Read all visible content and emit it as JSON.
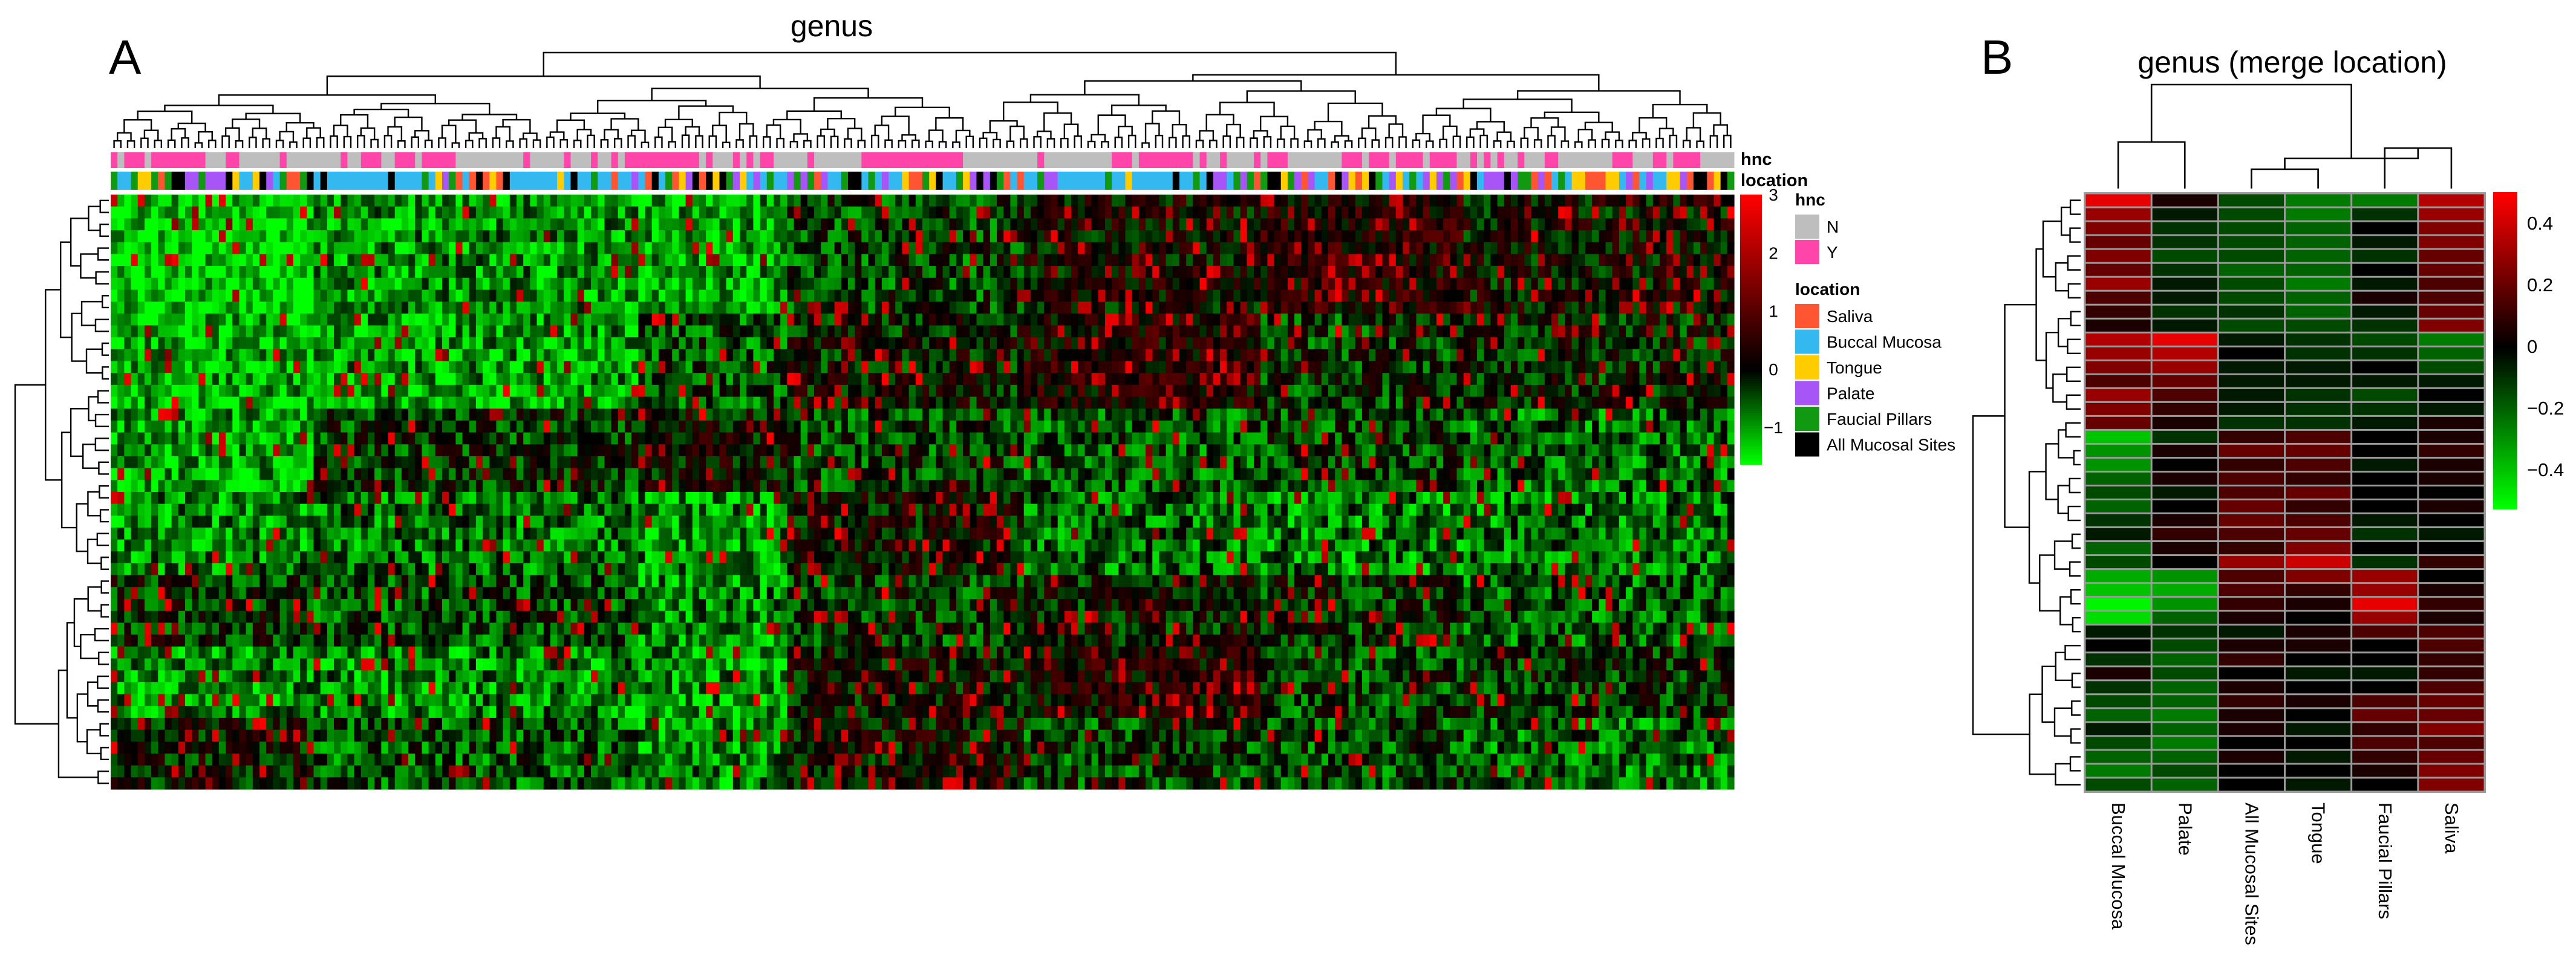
{
  "panel_a": {
    "letter": "A",
    "title": "genus",
    "annotation_labels": [
      "hnc",
      "location"
    ],
    "colorbar": {
      "min": -1.6,
      "max": 3,
      "ticks": [
        3,
        2,
        1,
        0,
        -1
      ],
      "tick_labels": [
        "3",
        "2",
        "1",
        "0",
        "−1"
      ]
    },
    "legend": {
      "hnc_title": "hnc",
      "hnc_items": [
        {
          "label": "N",
          "color": "#bebebe"
        },
        {
          "label": "Y",
          "color": "#ff44aa"
        }
      ],
      "location_title": "location",
      "location_items": [
        {
          "label": "Saliva",
          "color": "#ff5533"
        },
        {
          "label": "Buccal Mucosa",
          "color": "#33b8f0"
        },
        {
          "label": "Tongue",
          "color": "#ffcc00"
        },
        {
          "label": "Palate",
          "color": "#a855f7"
        },
        {
          "label": "Faucial Pillars",
          "color": "#119911"
        },
        {
          "label": "All Mucosal Sites",
          "color": "#000000"
        }
      ]
    }
  },
  "panel_b": {
    "letter": "B",
    "title": "genus (merge location)",
    "colorbar": {
      "min": -0.52,
      "max": 0.5,
      "ticks": [
        0.4,
        0.2,
        0,
        -0.2,
        -0.4
      ],
      "tick_labels": [
        "0.4",
        "0.2",
        "0",
        "−0.2",
        "−0.4"
      ]
    }
  },
  "chart_data": [
    {
      "type": "heatmap",
      "title": "genus",
      "rows": 50,
      "columns": 240,
      "color_scale": [
        "#00ff00",
        "#000000",
        "#ff0000"
      ],
      "value_range": [
        -1.6,
        3
      ],
      "column_annotations": [
        "hnc",
        "location"
      ],
      "note_values": "individual cell values are not printed; pattern reproduced approximately"
    },
    {
      "type": "heatmap",
      "title": "genus (merge location)",
      "columns": [
        "Buccal Mucosa",
        "Palate",
        "All Mucosal Sites",
        "Tongue",
        "Faucial Pillars",
        "Saliva"
      ],
      "rows": 43,
      "color_scale": [
        "#00ff00",
        "#000000",
        "#ff0000"
      ],
      "value_range": [
        -0.52,
        0.5
      ],
      "values": [
        [
          0.45,
          0.05,
          -0.15,
          -0.25,
          -0.25,
          0.35
        ],
        [
          0.3,
          -0.05,
          -0.15,
          -0.25,
          -0.1,
          0.3
        ],
        [
          0.25,
          -0.1,
          -0.15,
          -0.2,
          0.0,
          0.25
        ],
        [
          0.2,
          -0.1,
          -0.15,
          -0.2,
          -0.05,
          0.25
        ],
        [
          0.25,
          -0.15,
          -0.15,
          -0.2,
          -0.1,
          0.2
        ],
        [
          0.2,
          -0.1,
          -0.2,
          -0.2,
          0.0,
          0.2
        ],
        [
          0.3,
          -0.05,
          -0.15,
          -0.25,
          -0.05,
          0.15
        ],
        [
          0.15,
          -0.05,
          -0.15,
          -0.2,
          0.05,
          0.15
        ],
        [
          0.1,
          -0.1,
          -0.1,
          -0.2,
          -0.05,
          0.2
        ],
        [
          0.05,
          -0.05,
          -0.15,
          -0.15,
          -0.1,
          0.25
        ],
        [
          0.35,
          0.45,
          -0.05,
          -0.1,
          -0.15,
          -0.25
        ],
        [
          0.3,
          0.35,
          0.0,
          -0.1,
          -0.1,
          -0.2
        ],
        [
          0.25,
          0.3,
          -0.05,
          -0.05,
          0.0,
          -0.15
        ],
        [
          0.15,
          0.2,
          -0.05,
          -0.05,
          -0.05,
          -0.05
        ],
        [
          0.3,
          0.15,
          -0.05,
          -0.1,
          -0.15,
          0.0
        ],
        [
          0.25,
          0.1,
          -0.05,
          -0.1,
          -0.1,
          -0.05
        ],
        [
          0.2,
          0.05,
          -0.1,
          -0.1,
          -0.05,
          0.05
        ],
        [
          -0.4,
          -0.1,
          0.1,
          0.15,
          0.0,
          0.05
        ],
        [
          -0.3,
          0.05,
          0.2,
          0.2,
          0.0,
          0.1
        ],
        [
          -0.3,
          0.0,
          0.1,
          0.15,
          -0.05,
          0.05
        ],
        [
          -0.2,
          0.05,
          0.15,
          0.1,
          0.0,
          0.05
        ],
        [
          -0.15,
          -0.05,
          0.15,
          0.2,
          0.0,
          0.0
        ],
        [
          -0.2,
          0.0,
          0.2,
          0.1,
          0.0,
          0.05
        ],
        [
          -0.1,
          0.05,
          0.2,
          0.15,
          -0.05,
          0.0
        ],
        [
          -0.05,
          0.1,
          0.15,
          0.2,
          -0.1,
          -0.05
        ],
        [
          -0.2,
          0.05,
          0.1,
          0.25,
          0.0,
          0.0
        ],
        [
          -0.15,
          0.0,
          0.3,
          0.4,
          -0.1,
          0.1
        ],
        [
          -0.35,
          -0.3,
          0.15,
          0.25,
          0.3,
          0.0
        ],
        [
          -0.4,
          -0.35,
          0.15,
          0.1,
          0.3,
          0.05
        ],
        [
          -0.5,
          -0.3,
          0.1,
          0.05,
          0.45,
          0.1
        ],
        [
          -0.45,
          -0.2,
          0.05,
          0.0,
          0.3,
          0.05
        ],
        [
          -0.05,
          -0.1,
          -0.05,
          0.05,
          0.15,
          0.15
        ],
        [
          0.0,
          -0.15,
          0.05,
          0.05,
          0.0,
          0.15
        ],
        [
          -0.1,
          -0.2,
          0.1,
          0.0,
          0.0,
          0.1
        ],
        [
          0.05,
          -0.15,
          0.0,
          -0.05,
          -0.05,
          0.1
        ],
        [
          -0.1,
          -0.2,
          0.05,
          0.0,
          0.0,
          0.15
        ],
        [
          -0.15,
          -0.2,
          0.1,
          0.05,
          0.15,
          0.2
        ],
        [
          -0.2,
          -0.25,
          0.05,
          0.0,
          0.2,
          0.2
        ],
        [
          -0.05,
          -0.2,
          0.05,
          -0.05,
          0.1,
          0.25
        ],
        [
          -0.15,
          -0.25,
          0.0,
          0.0,
          0.15,
          0.15
        ],
        [
          -0.2,
          -0.2,
          0.05,
          -0.05,
          0.1,
          0.2
        ],
        [
          -0.25,
          -0.15,
          0.0,
          0.0,
          0.05,
          0.25
        ],
        [
          -0.15,
          -0.2,
          0.0,
          -0.05,
          0.0,
          0.25
        ]
      ]
    }
  ]
}
